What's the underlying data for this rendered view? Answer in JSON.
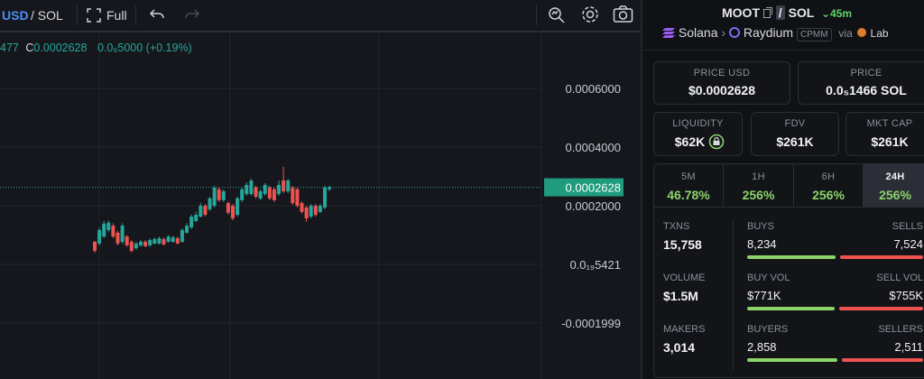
{
  "toolbar": {
    "pair": "USD",
    "quote": "/ SOL",
    "full": "Full"
  },
  "legend": {
    "prefix": "477",
    "close_label": "C",
    "close": "0.0002628",
    "change": "0.0₆5000 (+0.19%)"
  },
  "chart_data": {
    "type": "candlestick",
    "up_color": "#26a69a",
    "down_color": "#ef5350",
    "ylim": [
      -0.000391,
      0.000794
    ],
    "yticks": [
      {
        "value": 0.0006,
        "label": "0.0006000"
      },
      {
        "value": 0.0004,
        "label": "0.0004000"
      },
      {
        "value": 0.0002,
        "label": "0.0002000"
      },
      {
        "value": 5.421e-20,
        "label": "0.0₁₉5421"
      },
      -0.0001999
    ],
    "grid": true,
    "last_price": 0.0002628,
    "candles": [
      [
        7.7e-05,
        8e-05,
        4e-05,
        4.6e-05
      ],
      [
        7.1e-05,
        0.000125,
        6.5e-05,
        0.000117
      ],
      [
        9.5e-05,
        0.000148,
        9e-05,
        0.000139
      ],
      [
        0.000117,
        0.00015,
        0.00011,
        0.000142
      ],
      [
        0.000132,
        0.00014,
        9e-05,
        9.5e-05
      ],
      [
        0.000108,
        0.000115,
        6.5e-05,
        7.1e-05
      ],
      [
        7.7e-05,
        0.00014,
        7e-05,
        0.000132
      ],
      [
        9.5e-05,
        0.0001,
        6e-05,
        6.5e-05
      ],
      [
        7.7e-05,
        8.3e-05,
        4e-05,
        4.6e-05
      ],
      [
        5.5e-05,
        7.7e-05,
        5e-05,
        7.1e-05
      ],
      [
        6.5e-05,
        8.3e-05,
        6e-05,
        7.7e-05
      ],
      [
        7.7e-05,
        8.3e-05,
        5.8e-05,
        6.2e-05
      ],
      [
        6.5e-05,
        8.9e-05,
        6e-05,
        8.3e-05
      ],
      [
        7.1e-05,
        9.2e-05,
        6.8e-05,
        8.6e-05
      ],
      [
        7.1e-05,
        9.5e-05,
        6.8e-05,
        8.9e-05
      ],
      [
        8.6e-05,
        9.2e-05,
        6.5e-05,
        6.8e-05
      ],
      [
        7.7e-05,
        0.0001,
        7.4e-05,
        9.5e-05
      ],
      [
        7.7e-05,
        9.8e-05,
        7.4e-05,
        9.2e-05
      ],
      [
        8.9e-05,
        9.5e-05,
        6.8e-05,
        7.1e-05
      ],
      [
        7.7e-05,
        0.000123,
        7.4e-05,
        0.000117
      ],
      [
        0.000108,
        0.00014,
        0.000105,
        0.000132
      ],
      [
        0.000126,
        0.00017,
        0.00012,
        0.000163
      ],
      [
        0.000148,
        0.00018,
        0.000145,
        0.000169
      ],
      [
        0.000163,
        0.00021,
        0.00016,
        0.0002
      ],
      [
        0.0002,
        0.000206,
        0.000163,
        0.000169
      ],
      [
        0.000188,
        0.000231,
        0.000182,
        0.000225
      ],
      [
        0.0002,
        0.000268,
        0.000194,
        0.000262
      ],
      [
        0.000256,
        0.000262,
        0.000213,
        0.000219
      ],
      [
        0.000219,
        0.000256,
        0.000213,
        0.000249
      ],
      [
        0.000209,
        0.000215,
        0.00017,
        0.000176
      ],
      [
        0.0002,
        0.000206,
        0.00015,
        0.000157
      ],
      [
        0.000169,
        0.000231,
        0.000163,
        0.000225
      ],
      [
        0.000219,
        0.000262,
        0.000213,
        0.000256
      ],
      [
        0.00024,
        0.00028,
        0.000234,
        0.000271
      ],
      [
        0.00024,
        0.000292,
        0.000234,
        0.000286
      ],
      [
        0.000262,
        0.000268,
        0.000225,
        0.000231
      ],
      [
        0.000225,
        0.000256,
        0.000219,
        0.000249
      ],
      [
        0.00024,
        0.000277,
        0.000234,
        0.000271
      ],
      [
        0.000262,
        0.000268,
        0.000219,
        0.000225
      ],
      [
        0.000256,
        0.000262,
        0.000213,
        0.000219
      ],
      [
        0.00024,
        0.000286,
        0.000234,
        0.000271
      ],
      [
        0.000286,
        0.000333,
        0.000243,
        0.000249
      ],
      [
        0.000249,
        0.000292,
        0.000243,
        0.000286
      ],
      [
        0.000262,
        0.000268,
        0.000203,
        0.000209
      ],
      [
        0.000256,
        0.000262,
        0.000194,
        0.0002
      ],
      [
        0.000209,
        0.000215,
        0.000173,
        0.000179
      ],
      [
        0.000194,
        0.0002,
        0.000145,
        0.000157
      ],
      [
        0.000163,
        0.000206,
        0.000157,
        0.0002
      ],
      [
        0.0002,
        0.000206,
        0.000163,
        0.000169
      ],
      [
        0.000179,
        0.000206,
        0.000175,
        0.0002
      ],
      [
        0.000194,
        0.000268,
        0.000188,
        0.000262
      ],
      [
        0.000256,
        0.000268,
        0.00025,
        0.0002628
      ]
    ]
  },
  "pair_header": {
    "base": "MOOT",
    "sep": "/",
    "quote": "SOL",
    "age": "45m"
  },
  "route": {
    "chain": "Solana",
    "dex": "Raydium",
    "tag": "CPMM",
    "via": "via",
    "source": "Lab"
  },
  "price_usd": {
    "label": "PRICE USD",
    "value": "$0.0002628"
  },
  "price": {
    "label": "PRICE",
    "value": "0.0₅1466 SOL"
  },
  "liquidity": {
    "label": "LIQUIDITY",
    "value": "$62K"
  },
  "fdv": {
    "label": "FDV",
    "value": "$261K"
  },
  "mkt_cap": {
    "label": "MKT CAP",
    "value": "$261K"
  },
  "timeframes": [
    {
      "label": "5M",
      "change": "46.78%"
    },
    {
      "label": "1H",
      "change": "256%"
    },
    {
      "label": "6H",
      "change": "256%"
    },
    {
      "label": "24H",
      "change": "256%"
    }
  ],
  "stats": {
    "txns": {
      "label": "TXNS",
      "value": "15,758"
    },
    "buys": {
      "label": "BUYS",
      "value": "8,234"
    },
    "sells": {
      "label": "SELLS",
      "value": "7,524"
    },
    "volume": {
      "label": "VOLUME",
      "value": "$1.5M"
    },
    "buy_vol": {
      "label": "BUY VOL",
      "value": "$771K"
    },
    "sell_vol": {
      "label": "SELL VOL",
      "value": "$755K"
    },
    "makers": {
      "label": "MAKERS",
      "value": "3,014"
    },
    "buyers": {
      "label": "BUYERS",
      "value": "2,858"
    },
    "sellers": {
      "label": "SELLERS",
      "value": "2,511"
    }
  }
}
